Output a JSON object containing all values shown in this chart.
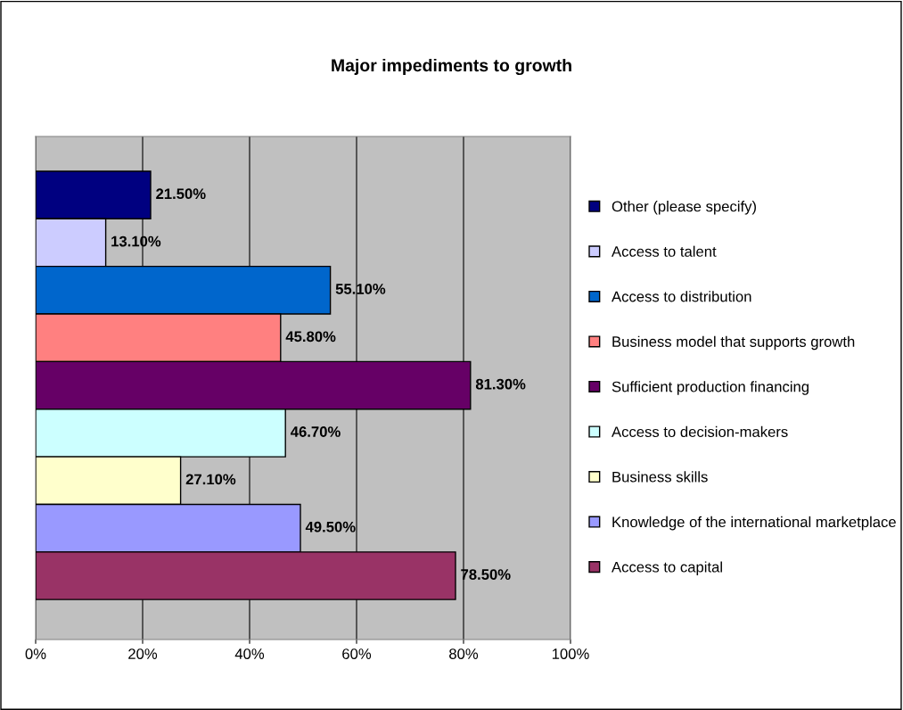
{
  "chart_data": {
    "type": "bar",
    "orientation": "horizontal",
    "title": "Major impediments to growth",
    "categories": [
      null
    ],
    "series": [
      {
        "name": "Other (please specify)",
        "color": "#000080",
        "values": [
          21.5
        ],
        "value_labels": [
          "21.50%"
        ]
      },
      {
        "name": "Access to talent",
        "color": "#ccccff",
        "values": [
          13.1
        ],
        "value_labels": [
          "13.10%"
        ]
      },
      {
        "name": "Access to distribution",
        "color": "#0066cc",
        "values": [
          55.1
        ],
        "value_labels": [
          "55.10%"
        ]
      },
      {
        "name": "Business model that supports growth",
        "color": "#ff8080",
        "values": [
          45.8
        ],
        "value_labels": [
          "45.80%"
        ]
      },
      {
        "name": "Sufficient production financing",
        "color": "#660066",
        "values": [
          81.3
        ],
        "value_labels": [
          "81.30%"
        ]
      },
      {
        "name": "Access to decision-makers",
        "color": "#ccffff",
        "values": [
          46.7
        ],
        "value_labels": [
          "46.70%"
        ]
      },
      {
        "name": "Business skills",
        "color": "#ffffcc",
        "values": [
          27.1
        ],
        "value_labels": [
          "27.10%"
        ]
      },
      {
        "name": "Knowledge of the international marketplace",
        "color": "#9999ff",
        "values": [
          49.5
        ],
        "value_labels": [
          "49.50%"
        ]
      },
      {
        "name": "Access to capital",
        "color": "#993366",
        "values": [
          78.5
        ],
        "value_labels": [
          "78.50%"
        ]
      }
    ],
    "xlim": [
      0,
      100
    ],
    "xticks": [
      {
        "value": 0,
        "label": "0%"
      },
      {
        "value": 20,
        "label": "20%"
      },
      {
        "value": 40,
        "label": "40%"
      },
      {
        "value": 60,
        "label": "60%"
      },
      {
        "value": 80,
        "label": "80%"
      },
      {
        "value": 100,
        "label": "100%"
      }
    ],
    "grid": "x",
    "legend": "right"
  }
}
